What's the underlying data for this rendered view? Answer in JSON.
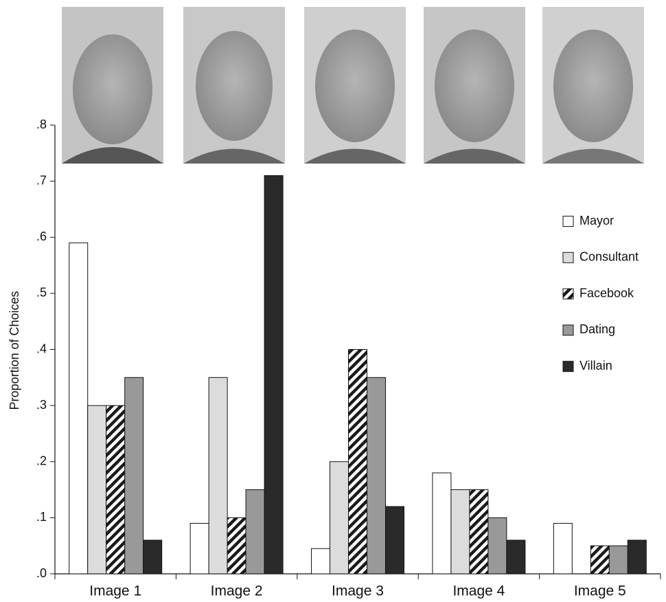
{
  "chart_data": {
    "type": "bar",
    "y_label": "Proportion of Choices",
    "categories": [
      "Image 1",
      "Image 2",
      "Image 3",
      "Image 4",
      "Image 5"
    ],
    "series": [
      {
        "name": "Mayor",
        "color": "#ffffff",
        "values": [
          0.59,
          0.09,
          0.045,
          0.18,
          0.09
        ]
      },
      {
        "name": "Consultant",
        "color": "#dcdcdc",
        "values": [
          0.3,
          0.35,
          0.2,
          0.15,
          0
        ]
      },
      {
        "name": "Facebook",
        "color": "#1a1a1a",
        "pattern": "hatch",
        "values": [
          0.3,
          0.1,
          0.4,
          0.15,
          0.05
        ]
      },
      {
        "name": "Dating",
        "color": "#999999",
        "values": [
          0.35,
          0.15,
          0.35,
          0.1,
          0.05
        ]
      },
      {
        "name": "Villain",
        "color": "#2a2a2a",
        "values": [
          0.06,
          0.71,
          0.12,
          0.06,
          0.06
        ]
      }
    ],
    "ylim": [
      0,
      0.8
    ],
    "yticks": [
      {
        "value": 0,
        "label": ".0"
      },
      {
        "value": 0.1,
        "label": ".1"
      },
      {
        "value": 0.2,
        "label": ".2"
      },
      {
        "value": 0.3,
        "label": ".3"
      },
      {
        "value": 0.4,
        "label": ".4"
      },
      {
        "value": 0.5,
        "label": ".5"
      },
      {
        "value": 0.6,
        "label": ".6"
      },
      {
        "value": 0.7,
        "label": ".7"
      },
      {
        "value": 0.8,
        "label": ".8"
      }
    ],
    "legend": "right"
  }
}
